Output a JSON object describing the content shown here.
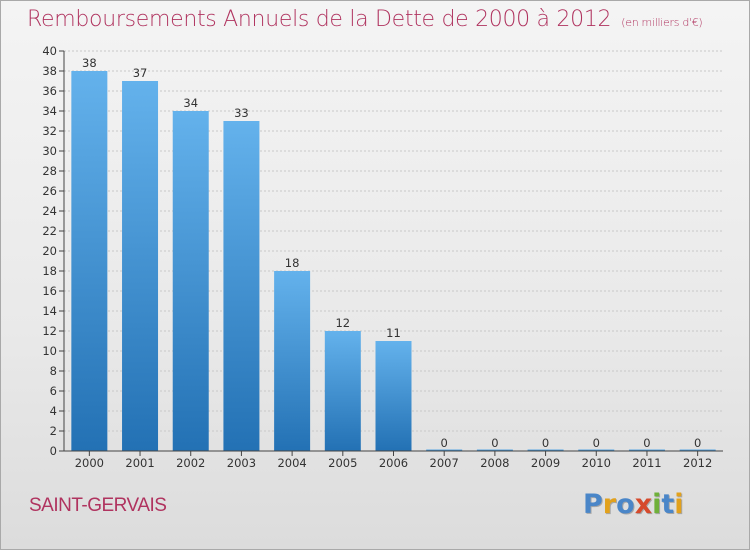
{
  "header": {
    "title": "Remboursements Annuels de la Dette de 2000 à 2012",
    "subtitle": "(en milliers d'€)"
  },
  "footer": {
    "commune": "SAINT-GERVAIS",
    "logo_text": "Proxiti"
  },
  "colors": {
    "title": "#b0335f",
    "commune": "#b0335f",
    "bar_top": "#64b2ec",
    "bar_bottom": "#2371b4",
    "axis": "#444444",
    "grid": "#c8c8c8",
    "logo_letters": [
      "#4a86c8",
      "#e2a11c",
      "#4a86c8",
      "#d64a2c",
      "#6fb03a",
      "#4a86c8",
      "#e2a11c"
    ]
  },
  "chart_data": {
    "type": "bar",
    "title": "Remboursements Annuels de la Dette de 2000 à 2012",
    "subtitle": "(en milliers d'€)",
    "categories": [
      "2000",
      "2001",
      "2002",
      "2003",
      "2004",
      "2005",
      "2006",
      "2007",
      "2008",
      "2009",
      "2010",
      "2011",
      "2012"
    ],
    "values": [
      38,
      37,
      34,
      33,
      18,
      12,
      11,
      0,
      0,
      0,
      0,
      0,
      0
    ],
    "ylim": [
      0,
      40
    ],
    "ytick_step": 2,
    "grid": true,
    "legend": "none"
  }
}
